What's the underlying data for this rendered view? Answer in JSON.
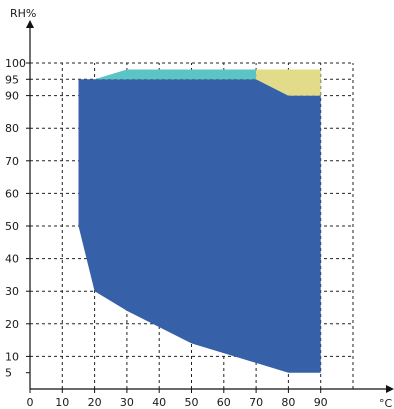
{
  "chart_data": {
    "type": "area",
    "title": "",
    "xlabel": "°C",
    "ylabel": "RH%",
    "x_ticks": [
      0,
      10,
      20,
      30,
      40,
      50,
      60,
      70,
      80,
      90
    ],
    "y_ticks": [
      5,
      10,
      20,
      30,
      40,
      50,
      60,
      70,
      80,
      90,
      95,
      100
    ],
    "xlim": [
      0,
      100
    ],
    "ylim": [
      0,
      100
    ],
    "grid": true,
    "legend": "none",
    "regions": [
      {
        "color": "#3661A8",
        "points": [
          [
            15,
            95
          ],
          [
            70,
            95
          ],
          [
            80,
            90
          ],
          [
            90,
            90
          ],
          [
            90,
            5
          ],
          [
            80,
            5
          ],
          [
            50,
            14
          ],
          [
            30,
            24
          ],
          [
            20,
            30
          ],
          [
            15,
            50
          ]
        ]
      },
      {
        "color": "#5BC4C4",
        "points": [
          [
            20,
            95
          ],
          [
            30,
            98
          ],
          [
            70,
            98
          ],
          [
            70,
            95
          ]
        ]
      },
      {
        "color": "#E2DC8A",
        "points": [
          [
            70,
            98
          ],
          [
            90,
            98
          ],
          [
            90,
            90
          ],
          [
            80,
            90
          ],
          [
            70,
            95
          ]
        ]
      }
    ]
  }
}
